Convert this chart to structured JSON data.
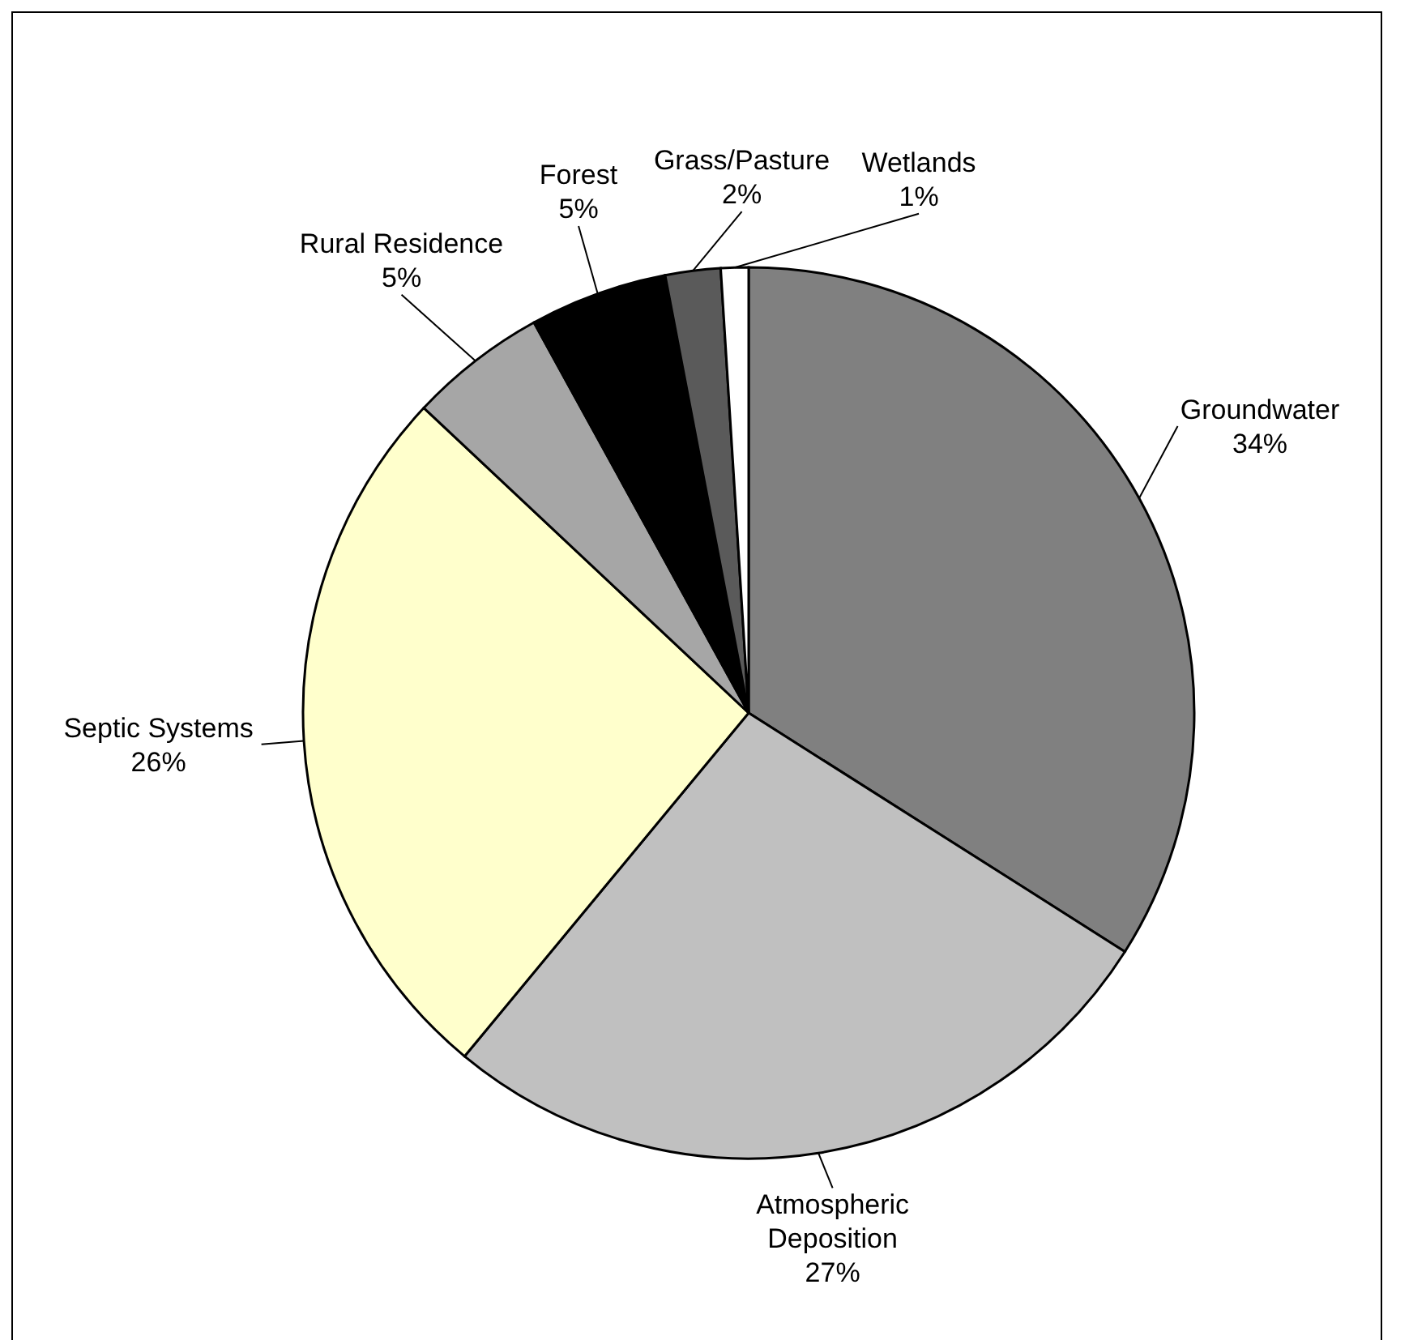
{
  "chart_data": {
    "type": "pie",
    "categories": [
      "Groundwater",
      "Atmospheric Deposition",
      "Septic Systems",
      "Rural Residence",
      "Forest",
      "Grass/Pasture",
      "Wetlands"
    ],
    "values": [
      34,
      27,
      26,
      5,
      5,
      2,
      1
    ],
    "value_labels": [
      "34%",
      "27%",
      "26%",
      "5%",
      "5%",
      "2%",
      "1%"
    ],
    "colors": [
      "#808080",
      "#c0c0c0",
      "#ffffcc",
      "#a6a6a6",
      "#000000",
      "#5a5a5a",
      "#ffffff"
    ]
  }
}
